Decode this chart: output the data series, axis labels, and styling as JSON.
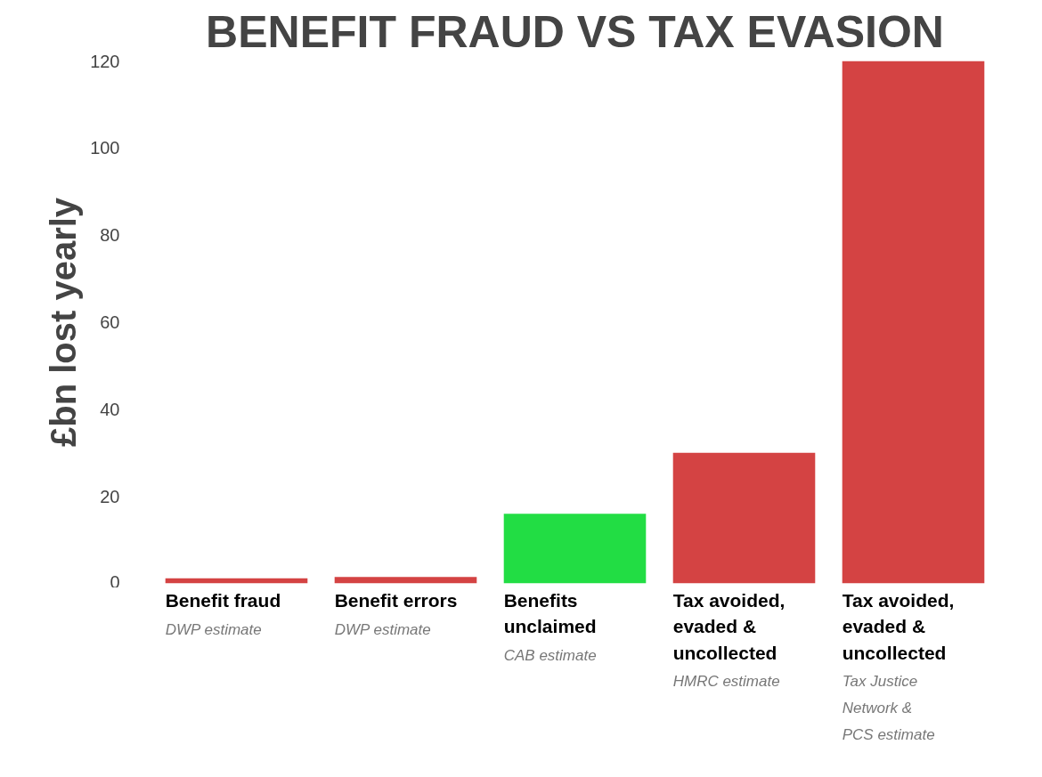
{
  "chart_data": {
    "type": "bar",
    "title": "BENEFIT FRAUD VS TAX EVASION",
    "ylabel": "£bn lost yearly",
    "categories": [
      "Benefit fraud",
      "Benefit errors",
      "Benefits\nunclaimed",
      "Tax avoided,\nevaded &\nuncollected",
      "Tax avoided,\nevaded &\nuncollected"
    ],
    "values": [
      1.2,
      1.5,
      16,
      30,
      120
    ],
    "colors": [
      "#d44343",
      "#d44343",
      "#22dd44",
      "#d44343",
      "#d44343"
    ],
    "annotations": [
      "DWP estimate",
      "DWP estimate",
      "CAB estimate",
      "HMRC estimate",
      "Tax Justice\nNetwork &\nPCS estimate"
    ],
    "ylim": [
      0,
      120
    ],
    "yticks": [
      0,
      20,
      40,
      60,
      80,
      100,
      120
    ],
    "grid": false
  }
}
